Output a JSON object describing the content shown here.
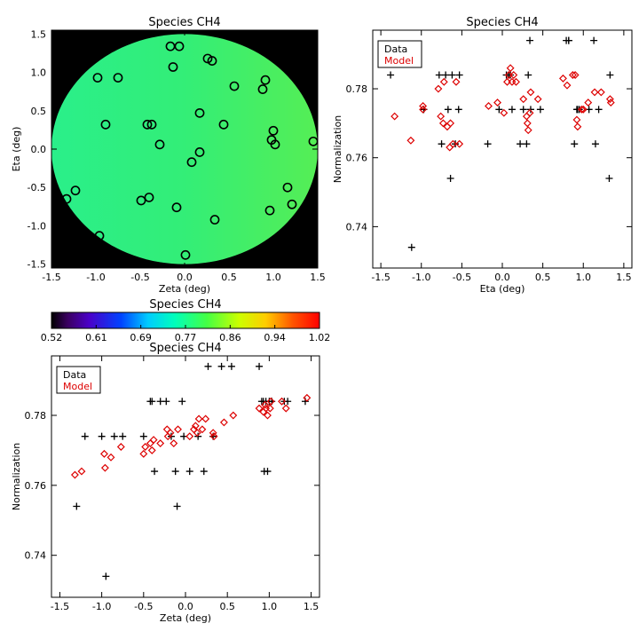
{
  "chart_data": [
    {
      "type": "map",
      "title": "Species CH4",
      "xlabel": "Zeta (deg)",
      "ylabel": "Eta (deg)",
      "xlim": [
        -1.5,
        1.5
      ],
      "ylim": [
        -1.55,
        1.55
      ],
      "xticks": [
        "-1.5",
        "-1.0",
        "-0.5",
        "0.0",
        "0.5",
        "1.0",
        "1.5"
      ],
      "yticks": [
        "-1.5",
        "-1.0",
        "-0.5",
        "0.0",
        "0.5",
        "1.0",
        "1.5"
      ],
      "background_color": "#000000",
      "disk_color": "#33ee77",
      "points": [
        {
          "x": -0.16,
          "y": 1.34
        },
        {
          "x": -0.06,
          "y": 1.34
        },
        {
          "x": -0.13,
          "y": 1.07
        },
        {
          "x": -0.98,
          "y": 0.93
        },
        {
          "x": -0.75,
          "y": 0.93
        },
        {
          "x": 0.26,
          "y": 1.18
        },
        {
          "x": 0.31,
          "y": 1.15
        },
        {
          "x": 0.91,
          "y": 0.9
        },
        {
          "x": 0.88,
          "y": 0.78
        },
        {
          "x": 0.56,
          "y": 0.82
        },
        {
          "x": 0.17,
          "y": 0.47
        },
        {
          "x": -0.89,
          "y": 0.32
        },
        {
          "x": -0.42,
          "y": 0.32
        },
        {
          "x": -0.37,
          "y": 0.32
        },
        {
          "x": 0.44,
          "y": 0.32
        },
        {
          "x": 1.0,
          "y": 0.24
        },
        {
          "x": 0.98,
          "y": 0.12
        },
        {
          "x": 1.02,
          "y": 0.06
        },
        {
          "x": 1.45,
          "y": 0.1
        },
        {
          "x": -0.28,
          "y": 0.06
        },
        {
          "x": 0.17,
          "y": -0.04
        },
        {
          "x": 0.08,
          "y": -0.17
        },
        {
          "x": -1.23,
          "y": -0.54
        },
        {
          "x": -1.33,
          "y": -0.65
        },
        {
          "x": -0.4,
          "y": -0.63
        },
        {
          "x": -0.49,
          "y": -0.67
        },
        {
          "x": -0.09,
          "y": -0.76
        },
        {
          "x": 1.16,
          "y": -0.5
        },
        {
          "x": 1.21,
          "y": -0.72
        },
        {
          "x": 0.96,
          "y": -0.8
        },
        {
          "x": 0.34,
          "y": -0.92
        },
        {
          "x": -0.96,
          "y": -1.13
        },
        {
          "x": 0.01,
          "y": -1.38
        }
      ]
    },
    {
      "type": "colorbar",
      "title": "Species CH4",
      "ticks": [
        "0.52",
        "0.61",
        "0.69",
        "0.77",
        "0.86",
        "0.94",
        "1.02"
      ],
      "range": [
        0.52,
        1.02
      ]
    },
    {
      "type": "scatter",
      "title": "Species CH4",
      "xlabel": "Eta (deg)",
      "ylabel": "Normalization",
      "xlim": [
        -1.6,
        1.6
      ],
      "ylim": [
        0.728,
        0.797
      ],
      "xticks": [
        "-1.5",
        "-1.0",
        "-0.5",
        "0.0",
        "0.5",
        "1.0",
        "1.5"
      ],
      "yticks": [
        "0.74",
        "0.76",
        "0.78"
      ],
      "legend": {
        "position": "top-left",
        "entries": [
          "Data",
          "Model"
        ]
      },
      "series": [
        {
          "name": "Data",
          "marker": "plus",
          "color": "#000000",
          "x": [
            -1.38,
            -1.12,
            -0.97,
            -0.78,
            -0.75,
            -0.7,
            -0.67,
            -0.64,
            -0.62,
            -0.58,
            -0.54,
            -0.53,
            -0.18,
            -0.04,
            0.05,
            0.08,
            0.1,
            0.12,
            0.22,
            0.26,
            0.3,
            0.32,
            0.34,
            0.35,
            0.47,
            0.79,
            0.82,
            0.82,
            0.92,
            0.93,
            0.95,
            0.89,
            1.07,
            1.13,
            1.15,
            1.19,
            1.32,
            1.33
          ],
          "y": [
            0.784,
            0.734,
            0.774,
            0.784,
            0.764,
            0.784,
            0.774,
            0.754,
            0.784,
            0.764,
            0.774,
            0.784,
            0.764,
            0.774,
            0.784,
            0.784,
            0.784,
            0.774,
            0.764,
            0.774,
            0.764,
            0.784,
            0.794,
            0.774,
            0.774,
            0.794,
            0.794,
            0.794,
            0.774,
            0.774,
            0.774,
            0.764,
            0.774,
            0.794,
            0.764,
            0.774,
            0.754,
            0.784
          ]
        },
        {
          "name": "Model",
          "marker": "diamond",
          "color": "#dd0000",
          "x": [
            -1.33,
            -1.13,
            -0.98,
            -0.98,
            -0.79,
            -0.76,
            -0.73,
            -0.72,
            -0.68,
            -0.65,
            -0.64,
            -0.61,
            -0.57,
            -0.53,
            -0.17,
            -0.06,
            0.02,
            0.06,
            0.08,
            0.1,
            0.12,
            0.14,
            0.17,
            0.26,
            0.3,
            0.31,
            0.32,
            0.34,
            0.35,
            0.44,
            0.75,
            0.8,
            0.87,
            0.9,
            0.92,
            0.93,
            0.98,
            1.0,
            1.06,
            1.14,
            1.22,
            1.33,
            1.34
          ],
          "y": [
            0.772,
            0.765,
            0.775,
            0.774,
            0.78,
            0.772,
            0.77,
            0.782,
            0.769,
            0.763,
            0.77,
            0.764,
            0.782,
            0.764,
            0.775,
            0.776,
            0.773,
            0.782,
            0.784,
            0.786,
            0.782,
            0.784,
            0.782,
            0.777,
            0.772,
            0.77,
            0.768,
            0.773,
            0.779,
            0.777,
            0.783,
            0.781,
            0.784,
            0.784,
            0.771,
            0.769,
            0.774,
            0.774,
            0.776,
            0.779,
            0.779,
            0.777,
            0.776
          ]
        }
      ]
    },
    {
      "type": "scatter",
      "title": "Species CH4",
      "xlabel": "Zeta (deg)",
      "ylabel": "Normalization",
      "xlim": [
        -1.6,
        1.6
      ],
      "ylim": [
        0.728,
        0.797
      ],
      "xticks": [
        "-1.5",
        "-1.0",
        "-0.5",
        "0.0",
        "0.5",
        "1.0",
        "1.5"
      ],
      "yticks": [
        "0.74",
        "0.76",
        "0.78"
      ],
      "legend": {
        "position": "top-left",
        "entries": [
          "Data",
          "Model"
        ]
      },
      "series": [
        {
          "name": "Data",
          "marker": "plus",
          "color": "#000000",
          "x": [
            -1.3,
            -1.2,
            -1.0,
            -0.95,
            -0.85,
            -0.75,
            -0.5,
            -0.42,
            -0.4,
            -0.37,
            -0.3,
            -0.23,
            -0.17,
            -0.12,
            -0.1,
            -0.04,
            -0.02,
            0.05,
            0.15,
            0.22,
            0.27,
            0.33,
            0.43,
            0.55,
            0.88,
            0.91,
            0.93,
            0.94,
            0.96,
            0.98,
            1.0,
            1.03,
            1.18,
            1.22,
            1.43
          ],
          "y": [
            0.754,
            0.774,
            0.774,
            0.734,
            0.774,
            0.774,
            0.774,
            0.784,
            0.784,
            0.764,
            0.784,
            0.784,
            0.774,
            0.764,
            0.754,
            0.784,
            0.774,
            0.764,
            0.774,
            0.764,
            0.794,
            0.774,
            0.794,
            0.794,
            0.794,
            0.784,
            0.784,
            0.764,
            0.784,
            0.764,
            0.784,
            0.784,
            0.784,
            0.784,
            0.784
          ]
        },
        {
          "name": "Model",
          "marker": "diamond",
          "color": "#dd0000",
          "x": [
            -1.32,
            -1.24,
            -0.97,
            -0.96,
            -0.89,
            -0.77,
            -0.5,
            -0.48,
            -0.42,
            -0.4,
            -0.38,
            -0.3,
            -0.22,
            -0.21,
            -0.18,
            -0.14,
            -0.09,
            0.05,
            0.1,
            0.12,
            0.14,
            0.16,
            0.2,
            0.24,
            0.33,
            0.34,
            0.46,
            0.57,
            0.88,
            0.93,
            0.95,
            0.96,
            0.98,
            1.01,
            1.02,
            1.15,
            1.2,
            1.45
          ],
          "y": [
            0.763,
            0.764,
            0.769,
            0.765,
            0.768,
            0.771,
            0.769,
            0.771,
            0.772,
            0.77,
            0.773,
            0.772,
            0.776,
            0.774,
            0.775,
            0.772,
            0.776,
            0.774,
            0.776,
            0.777,
            0.775,
            0.779,
            0.776,
            0.779,
            0.775,
            0.774,
            0.778,
            0.78,
            0.782,
            0.781,
            0.783,
            0.782,
            0.78,
            0.782,
            0.784,
            0.784,
            0.782,
            0.785
          ]
        }
      ]
    }
  ]
}
